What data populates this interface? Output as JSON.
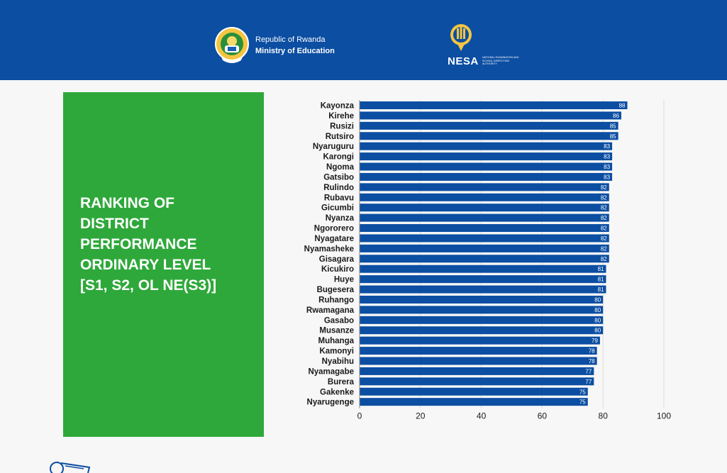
{
  "header": {
    "ministry_line1": "Republic of Rwanda",
    "ministry_line2": "Ministry of Education",
    "nesa_name": "NESA",
    "nesa_subtitle": "NATIONAL EXAMINATION AND SCHOOL INSPECTION AUTHORITY",
    "background_color": "#0b4ea2",
    "ministry_logo_icon": "rwanda-coat-of-arms-icon",
    "nesa_logo_icon": "nesa-torch-logo-icon"
  },
  "panel": {
    "title_lines": [
      "RANKING OF",
      "DISTRICT",
      "PERFORMANCE",
      "ORDINARY LEVEL",
      "[S1, S2, OL NE(S3)]"
    ],
    "background_color": "#2ea83a"
  },
  "footer": {
    "icon": "document-icon"
  },
  "chart_data": {
    "type": "bar",
    "orientation": "horizontal",
    "categories": [
      "Kayonza",
      "Kirehe",
      "Rusizi",
      "Rutsiro",
      "Nyaruguru",
      "Karongi",
      "Ngoma",
      "Gatsibo",
      "Rulindo",
      "Rubavu",
      "Gicumbi",
      "Nyanza",
      "Ngororero",
      "Nyagatare",
      "Nyamasheke",
      "Gisagara",
      "Kicukiro",
      "Huye",
      "Bugesera",
      "Ruhango",
      "Rwamagana",
      "Gasabo",
      "Musanze",
      "Muhanga",
      "Kamonyi",
      "Nyabihu",
      "Nyamagabe",
      "Burera",
      "Gakenke",
      "Nyarugenge"
    ],
    "values": [
      88,
      86,
      85,
      85,
      83,
      83,
      83,
      83,
      82,
      82,
      82,
      82,
      82,
      82,
      82,
      82,
      81,
      81,
      81,
      80,
      80,
      80,
      80,
      79,
      78,
      78,
      77,
      77,
      75,
      75
    ],
    "xlim": [
      0,
      100
    ],
    "xticks": [
      0,
      20,
      40,
      60,
      80,
      100
    ],
    "bar_color": "#0b4ea2",
    "label_color": "#ffffff",
    "grid": true,
    "legend": false
  }
}
